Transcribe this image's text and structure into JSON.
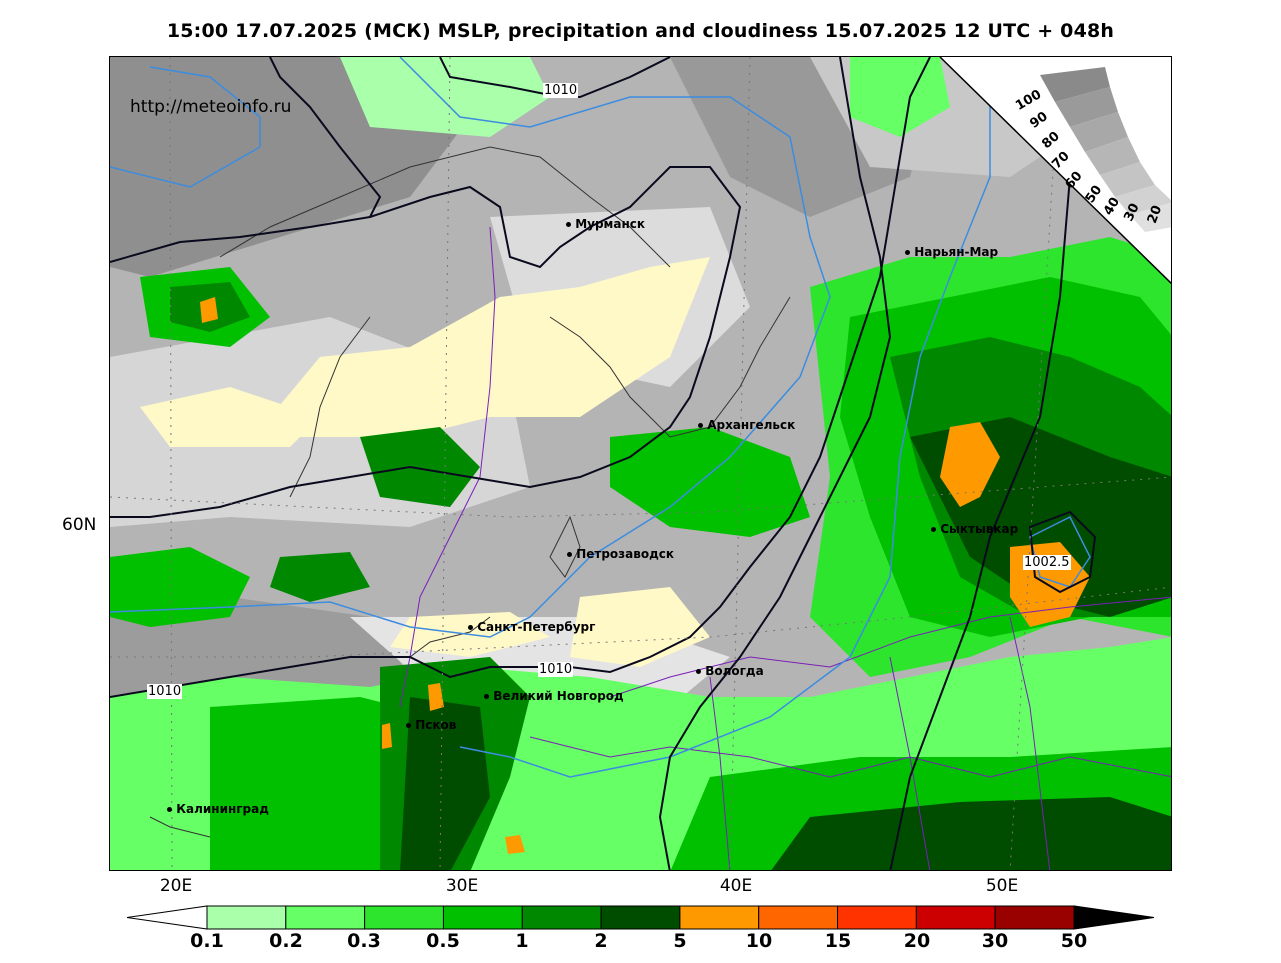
{
  "title": "15:00 17.07.2025 (МСК) MSLP, precipitation and cloudiness 15.07.2025 12 UTC + 048h",
  "watermark": "http://meteoinfo.ru",
  "longitude_labels": [
    "20E",
    "30E",
    "40E",
    "50E"
  ],
  "latitude_labels": [
    "60N"
  ],
  "cities": [
    {
      "name": "Мурманск"
    },
    {
      "name": "Нарьян-Мар"
    },
    {
      "name": "Архангельск"
    },
    {
      "name": "Сыктывкар"
    },
    {
      "name": "Петрозаводск"
    },
    {
      "name": "Санкт-Петербург"
    },
    {
      "name": "Вологда"
    },
    {
      "name": "Великий Новгород"
    },
    {
      "name": "Псков"
    },
    {
      "name": "Калининград"
    }
  ],
  "isobar_labels": [
    "1010",
    "1010",
    "1010",
    "1002.5"
  ],
  "cloud_scale_labels": [
    "100",
    "90",
    "80",
    "70",
    "60",
    "50",
    "40",
    "30",
    "20"
  ],
  "legend": {
    "ticks": [
      "0.1",
      "0.2",
      "0.3",
      "0.5",
      "1",
      "2",
      "5",
      "10",
      "15",
      "20",
      "30",
      "50"
    ],
    "colors": [
      "#aaffaa",
      "#66ff66",
      "#2ce52c",
      "#00c000",
      "#008800",
      "#004d00",
      "#ff9900",
      "#ff6600",
      "#ff3300",
      "#cc0000",
      "#990000"
    ],
    "under_color": "#ffffff",
    "over_color": "#000000"
  },
  "colors": {
    "isobar": "#0a0a1e",
    "coastline": "#333333",
    "border": "#7a1fb8",
    "freezing_line": "#3c8ce0",
    "clear_sky": "#fff9c8"
  }
}
